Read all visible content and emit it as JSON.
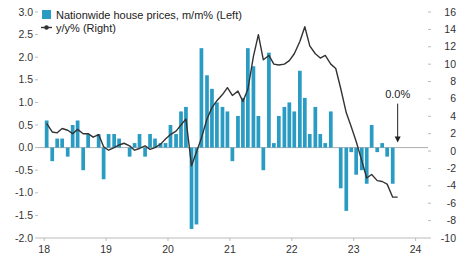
{
  "chart_data": {
    "type": "bar",
    "x": [
      18.04,
      18.13,
      18.21,
      18.29,
      18.38,
      18.46,
      18.54,
      18.63,
      18.71,
      18.79,
      18.88,
      18.96,
      19.04,
      19.13,
      19.21,
      19.29,
      19.38,
      19.46,
      19.54,
      19.63,
      19.71,
      19.79,
      19.88,
      19.96,
      20.04,
      20.13,
      20.21,
      20.29,
      20.38,
      20.46,
      20.54,
      20.63,
      20.71,
      20.79,
      20.88,
      20.96,
      21.04,
      21.13,
      21.21,
      21.29,
      21.38,
      21.46,
      21.54,
      21.63,
      21.71,
      21.79,
      21.88,
      21.96,
      22.04,
      22.13,
      22.21,
      22.29,
      22.38,
      22.46,
      22.54,
      22.63,
      22.71,
      22.79,
      22.88,
      22.96,
      23.04,
      23.13,
      23.21,
      23.29,
      23.38,
      23.46,
      23.54,
      23.63,
      23.71
    ],
    "series": [
      {
        "name": "Nationwide house prices, m/m% (Left)",
        "type": "bar",
        "color": "#2a9cc4",
        "values": [
          0.6,
          -0.3,
          0.2,
          0.2,
          -0.2,
          0.5,
          0.6,
          -0.5,
          0.3,
          0.0,
          0.3,
          -0.7,
          0.3,
          0.3,
          0.2,
          0.0,
          -0.2,
          0.1,
          0.3,
          -0.2,
          0.3,
          0.2,
          0.1,
          0.1,
          0.5,
          0.3,
          0.8,
          0.9,
          -1.8,
          -1.7,
          2.2,
          1.6,
          1.3,
          1.0,
          0.9,
          0.8,
          -0.3,
          0.7,
          1.1,
          2.2,
          1.8,
          0.7,
          -0.5,
          2.1,
          0.1,
          0.7,
          0.9,
          1.0,
          0.8,
          1.7,
          1.1,
          0.3,
          0.9,
          0.3,
          0.1,
          0.8,
          0.0,
          -0.9,
          -1.4,
          -0.1,
          -0.6,
          -0.5,
          -0.8,
          0.5,
          -0.1,
          0.1,
          -0.2,
          -0.8,
          0.0
        ]
      },
      {
        "name": "y/y% (Right)",
        "type": "line",
        "axis": "y2",
        "color": "#333333",
        "values": [
          3.2,
          2.2,
          2.1,
          2.6,
          2.4,
          2.0,
          2.5,
          2.0,
          2.0,
          1.6,
          1.9,
          0.5,
          0.1,
          0.4,
          0.7,
          0.9,
          0.6,
          0.1,
          0.3,
          0.6,
          0.2,
          0.4,
          0.8,
          1.4,
          1.9,
          2.3,
          3.0,
          3.7,
          -1.7,
          -0.1,
          1.5,
          3.7,
          5.0,
          5.8,
          6.5,
          7.3,
          6.4,
          6.9,
          5.7,
          7.1,
          10.9,
          13.4,
          10.5,
          11.0,
          10.0,
          9.9,
          10.0,
          10.4,
          11.2,
          12.6,
          14.3,
          12.1,
          11.2,
          10.7,
          11.0,
          10.0,
          9.5,
          7.2,
          4.4,
          2.8,
          1.1,
          -1.1,
          -3.1,
          -2.7,
          -3.4,
          -3.5,
          -3.8,
          -5.3,
          -5.3
        ]
      }
    ],
    "xlim": [
      17.9,
      24.2
    ],
    "xticks": [
      18,
      19,
      20,
      21,
      22,
      23,
      24
    ],
    "ylim": [
      -2,
      3
    ],
    "yticks": [
      {
        "value": 3,
        "label": "3.0"
      },
      {
        "value": 2.5,
        "label": "2.5"
      },
      {
        "value": 2,
        "label": "2.0"
      },
      {
        "value": 1.5,
        "label": "1.5"
      },
      {
        "value": 1,
        "label": "1.0"
      },
      {
        "value": 0.5,
        "label": "0.5"
      },
      {
        "value": 0,
        "label": "0.0"
      },
      {
        "value": -0.5,
        "label": "-0.5"
      },
      {
        "value": -1,
        "label": "-1.0"
      },
      {
        "value": -1.5,
        "label": "-1.5"
      },
      {
        "value": -2,
        "label": "-2.0"
      }
    ],
    "y2lim": [
      -10,
      16
    ],
    "y2ticks": [
      16,
      14,
      12,
      10,
      8,
      6,
      4,
      2,
      0,
      -2,
      -4,
      -6,
      -8,
      -10
    ],
    "grid": false,
    "legend": "top-left",
    "annotations": [
      {
        "text": "0.0%",
        "x": 23.71,
        "y": 0.0
      }
    ]
  }
}
